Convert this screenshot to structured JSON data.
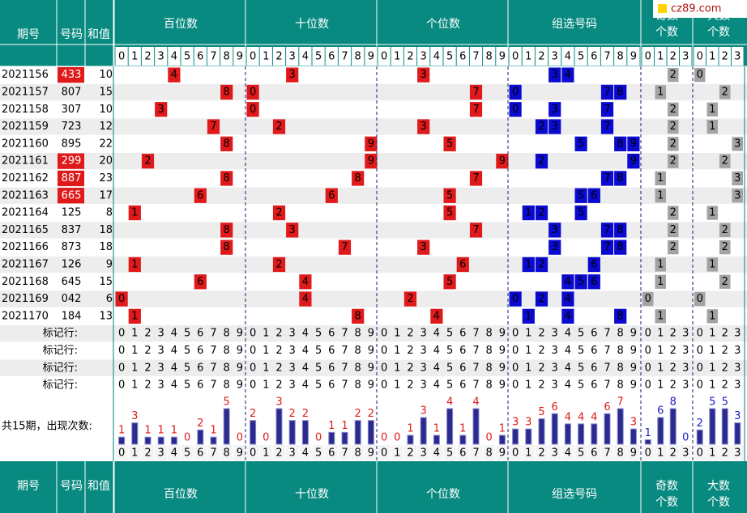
{
  "header": {
    "issue": "期号",
    "number": "号码",
    "sum": "和值",
    "groups": [
      "百位数",
      "十位数",
      "个位数",
      "组选号码"
    ],
    "odd": [
      "奇数",
      "个数"
    ],
    "big": [
      "大数",
      "个数"
    ]
  },
  "logo": "cz89.com",
  "digit_labels": [
    0,
    1,
    2,
    3,
    4,
    5,
    6,
    7,
    8,
    9
  ],
  "count_digit_labels": [
    0,
    1,
    2,
    3
  ],
  "rows": [
    {
      "issue": "2021156",
      "number": "433",
      "sum": 10,
      "hundreds": 4,
      "tens": 3,
      "units": 3,
      "group": [
        3,
        4
      ],
      "odd": 2,
      "big": 0,
      "highlight": true
    },
    {
      "issue": "2021157",
      "number": "807",
      "sum": 15,
      "hundreds": 8,
      "tens": 0,
      "units": 7,
      "group": [
        0,
        7,
        8
      ],
      "odd": 1,
      "big": 2,
      "highlight": false
    },
    {
      "issue": "2021158",
      "number": "307",
      "sum": 10,
      "hundreds": 3,
      "tens": 0,
      "units": 7,
      "group": [
        0,
        3,
        7
      ],
      "odd": 2,
      "big": 1,
      "highlight": false
    },
    {
      "issue": "2021159",
      "number": "723",
      "sum": 12,
      "hundreds": 7,
      "tens": 2,
      "units": 3,
      "group": [
        2,
        3,
        7
      ],
      "odd": 2,
      "big": 1,
      "highlight": false
    },
    {
      "issue": "2021160",
      "number": "895",
      "sum": 22,
      "hundreds": 8,
      "tens": 9,
      "units": 5,
      "group": [
        5,
        8,
        9
      ],
      "odd": 2,
      "big": 3,
      "highlight": false
    },
    {
      "issue": "2021161",
      "number": "299",
      "sum": 20,
      "hundreds": 2,
      "tens": 9,
      "units": 9,
      "group": [
        2,
        9
      ],
      "odd": 2,
      "big": 2,
      "highlight": true
    },
    {
      "issue": "2021162",
      "number": "887",
      "sum": 23,
      "hundreds": 8,
      "tens": 8,
      "units": 7,
      "group": [
        7,
        8
      ],
      "odd": 1,
      "big": 3,
      "highlight": true
    },
    {
      "issue": "2021163",
      "number": "665",
      "sum": 17,
      "hundreds": 6,
      "tens": 6,
      "units": 5,
      "group": [
        5,
        6
      ],
      "odd": 1,
      "big": 3,
      "highlight": true
    },
    {
      "issue": "2021164",
      "number": "125",
      "sum": 8,
      "hundreds": 1,
      "tens": 2,
      "units": 5,
      "group": [
        1,
        2,
        5
      ],
      "odd": 2,
      "big": 1,
      "highlight": false
    },
    {
      "issue": "2021165",
      "number": "837",
      "sum": 18,
      "hundreds": 8,
      "tens": 3,
      "units": 7,
      "group": [
        3,
        7,
        8
      ],
      "odd": 2,
      "big": 2,
      "highlight": false
    },
    {
      "issue": "2021166",
      "number": "873",
      "sum": 18,
      "hundreds": 8,
      "tens": 7,
      "units": 3,
      "group": [
        3,
        7,
        8
      ],
      "odd": 2,
      "big": 2,
      "highlight": false
    },
    {
      "issue": "2021167",
      "number": "126",
      "sum": 9,
      "hundreds": 1,
      "tens": 2,
      "units": 6,
      "group": [
        1,
        2,
        6
      ],
      "odd": 1,
      "big": 1,
      "highlight": false
    },
    {
      "issue": "2021168",
      "number": "645",
      "sum": 15,
      "hundreds": 6,
      "tens": 4,
      "units": 5,
      "group": [
        4,
        5,
        6
      ],
      "odd": 1,
      "big": 2,
      "highlight": false
    },
    {
      "issue": "2021169",
      "number": "042",
      "sum": 6,
      "hundreds": 0,
      "tens": 4,
      "units": 2,
      "group": [
        0,
        2,
        4
      ],
      "odd": 0,
      "big": 0,
      "highlight": false
    },
    {
      "issue": "2021170",
      "number": "184",
      "sum": 13,
      "hundreds": 1,
      "tens": 8,
      "units": 4,
      "group": [
        1,
        4,
        8
      ],
      "odd": 1,
      "big": 1,
      "highlight": false
    }
  ],
  "marker_rows": [
    "标记行:",
    "标记行:",
    "标记行:",
    "标记行:"
  ],
  "count_label": "共15期，出现次数:",
  "counts": {
    "hundreds": [
      1,
      3,
      1,
      1,
      1,
      0,
      2,
      1,
      5,
      0
    ],
    "tens": [
      2,
      0,
      3,
      2,
      2,
      0,
      1,
      1,
      2,
      2
    ],
    "units": [
      0,
      0,
      1,
      3,
      1,
      4,
      1,
      4,
      0,
      1
    ],
    "group": [
      3,
      3,
      5,
      6,
      4,
      4,
      4,
      6,
      7,
      3
    ],
    "odd": [
      1,
      6,
      8,
      0
    ],
    "big": [
      2,
      5,
      5,
      3
    ]
  },
  "colors": {
    "header": "#088a80",
    "position": "#e0191b",
    "group": "#0a0ad0",
    "count_cell": "#a3a3a3",
    "alt_row": "#ededed",
    "bar": "#2a2a8f",
    "count_text": "#e0191b",
    "count_text_small": "#1a1ac8"
  }
}
